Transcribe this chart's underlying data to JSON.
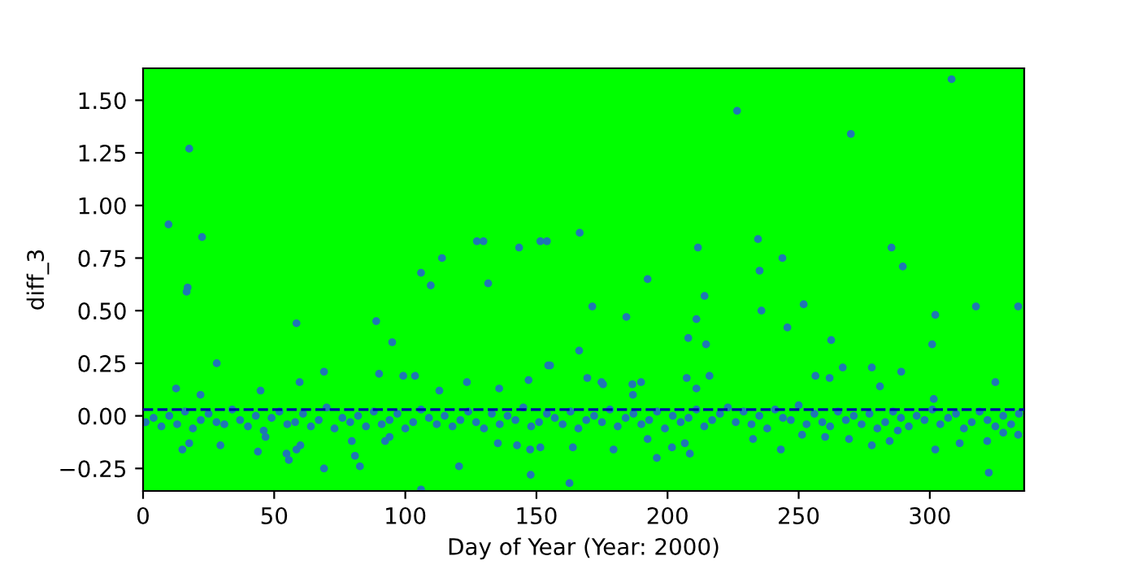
{
  "chart_data": {
    "type": "scatter",
    "xlabel": "Day of Year (Year: 2000)",
    "ylabel": "diff_3",
    "xlim": [
      0,
      336
    ],
    "ylim": [
      -0.357,
      1.652
    ],
    "xticks": [
      0,
      50,
      100,
      150,
      200,
      250,
      300
    ],
    "yticks": [
      {
        "value": -0.25,
        "label": "−0.25"
      },
      {
        "value": 0,
        "label": "0.00"
      },
      {
        "value": 0.25,
        "label": "0.25"
      },
      {
        "value": 0.5,
        "label": "0.50"
      },
      {
        "value": 0.75,
        "label": "0.75"
      },
      {
        "value": 1.0,
        "label": "1.00"
      },
      {
        "value": 1.25,
        "label": "1.25"
      },
      {
        "value": 1.5,
        "label": "1.50"
      }
    ],
    "grid": false,
    "legend": false,
    "marker": "circle",
    "ref_lines": [
      {
        "axis": "y",
        "value": 0.03,
        "color": "#0000aa",
        "line_style": "dashed"
      }
    ],
    "series": [
      {
        "color": "#1f77b4",
        "x": [
          9.7,
          17.6,
          22.5,
          17,
          16.6,
          28.1,
          12.6,
          21.9,
          58.5,
          59.7,
          69,
          44.8,
          88.9,
          95,
          90,
          99.2,
          103.7,
          106,
          109.7,
          114,
          113,
          123.5,
          127.3,
          129.8,
          131.6,
          143.4,
          151.5,
          154,
          154.5,
          135.8,
          147,
          15,
          17.6,
          29.5,
          43.8,
          46.7,
          54.7,
          55.6,
          58.5,
          60,
          69,
          79.6,
          80.8,
          82.7,
          92.3,
          94,
          106,
          120.5,
          135.3,
          142.6,
          147.6,
          147.8,
          151.5,
          166.5,
          226.5,
          269.9,
          308.3,
          155.2,
          171.3,
          166.3,
          169.4,
          174.8,
          175.4,
          184.3,
          186.6,
          189.9,
          192.4,
          186.8,
          211.6,
          214.1,
          211,
          207.9,
          214.7,
          207.3,
          211,
          216,
          234.5,
          235.1,
          243.8,
          235.8,
          245.7,
          251.9,
          262.4,
          256.4,
          261.8,
          266.8,
          277.9,
          289.1,
          285.4,
          289.7,
          281,
          300.9,
          302.1,
          317.6,
          333.7,
          325,
          301.5,
          162.6,
          163.9,
          179.4,
          192.4,
          195.9,
          201.7,
          208.5,
          206.6,
          232.6,
          243.2,
          251.3,
          260.1,
          269.2,
          277.9,
          284.7,
          287.8,
          302.1,
          311.4,
          322.5,
          321.9,
          328,
          333.7,
          1,
          4,
          7,
          10,
          13,
          16,
          19,
          22,
          25,
          28,
          31,
          34,
          37,
          40,
          43,
          46,
          49,
          52,
          55,
          58,
          61,
          64,
          67,
          70,
          73,
          76,
          79,
          82,
          85,
          88,
          91,
          94,
          97,
          100,
          103,
          106,
          109,
          112,
          115,
          118,
          121,
          124,
          127,
          130,
          133,
          136,
          139,
          142,
          145,
          148,
          151,
          154,
          157,
          160,
          163,
          166,
          169,
          172,
          175,
          178,
          181,
          184,
          187,
          190,
          193,
          196,
          199,
          202,
          205,
          208,
          211,
          214,
          217,
          220,
          223,
          226,
          229,
          232,
          235,
          238,
          241,
          244,
          247,
          250,
          253,
          256,
          259,
          262,
          265,
          268,
          271,
          274,
          277,
          280,
          283,
          286,
          289,
          292,
          295,
          298,
          301,
          304,
          307,
          310,
          313,
          316,
          319,
          322,
          325,
          328,
          331,
          334
        ],
        "values": [
          0.91,
          1.27,
          0.85,
          0.61,
          0.59,
          0.25,
          0.13,
          0.1,
          0.44,
          0.16,
          0.21,
          0.12,
          0.45,
          0.35,
          0.2,
          0.19,
          0.19,
          0.68,
          0.62,
          0.75,
          0.12,
          0.16,
          0.83,
          0.83,
          0.63,
          0.8,
          0.83,
          0.83,
          0.24,
          0.13,
          0.17,
          -0.16,
          -0.13,
          -0.14,
          -0.17,
          -0.1,
          -0.18,
          -0.21,
          -0.16,
          -0.14,
          -0.25,
          -0.12,
          -0.19,
          -0.24,
          -0.12,
          -0.1,
          -0.35,
          -0.24,
          -0.13,
          -0.14,
          -0.16,
          -0.28,
          -0.15,
          0.87,
          1.45,
          1.34,
          1.6,
          0.24,
          0.52,
          0.31,
          0.18,
          0.16,
          0.15,
          0.47,
          0.15,
          0.16,
          0.65,
          0.1,
          0.8,
          0.57,
          0.46,
          0.37,
          0.34,
          0.18,
          0.13,
          0.19,
          0.84,
          0.69,
          0.75,
          0.5,
          0.42,
          0.53,
          0.36,
          0.19,
          0.18,
          0.23,
          0.23,
          0.21,
          0.8,
          0.71,
          0.14,
          0.34,
          0.48,
          0.52,
          0.52,
          0.16,
          0.08,
          -0.32,
          -0.15,
          -0.16,
          -0.11,
          -0.2,
          -0.15,
          -0.18,
          -0.13,
          -0.11,
          -0.16,
          -0.09,
          -0.1,
          -0.11,
          -0.14,
          -0.12,
          -0.07,
          -0.16,
          -0.13,
          -0.27,
          -0.12,
          -0.08,
          -0.09,
          -0.03,
          -0.01,
          -0.05,
          0.0,
          -0.04,
          0.02,
          -0.06,
          -0.02,
          0.01,
          -0.03,
          -0.04,
          0.03,
          -0.02,
          -0.05,
          0.0,
          -0.07,
          -0.01,
          0.02,
          -0.04,
          -0.03,
          0.01,
          -0.05,
          -0.02,
          0.04,
          -0.06,
          -0.01,
          -0.03,
          0.0,
          -0.05,
          0.02,
          -0.04,
          -0.02,
          0.01,
          -0.06,
          -0.03,
          0.03,
          -0.01,
          -0.04,
          0.0,
          -0.05,
          -0.02,
          0.02,
          -0.03,
          -0.06,
          0.01,
          -0.04,
          0.0,
          -0.02,
          0.04,
          -0.05,
          -0.03,
          0.01,
          -0.01,
          -0.04,
          0.02,
          -0.06,
          -0.02,
          0.0,
          -0.03,
          0.03,
          -0.05,
          -0.01,
          0.01,
          -0.04,
          -0.02,
          0.02,
          -0.06,
          0.0,
          -0.03,
          -0.01,
          0.03,
          -0.05,
          -0.02,
          0.01,
          0.04,
          -0.03,
          0.02,
          -0.04,
          0.0,
          -0.06,
          0.03,
          -0.01,
          -0.02,
          0.05,
          -0.04,
          0.01,
          -0.03,
          -0.05,
          0.02,
          -0.02,
          0.0,
          -0.04,
          0.01,
          -0.06,
          -0.03,
          0.02,
          -0.01,
          -0.05,
          0.0,
          -0.02,
          0.03,
          -0.04,
          -0.01,
          0.01,
          -0.06,
          -0.03,
          0.02,
          -0.02,
          -0.05,
          0.0,
          -0.04,
          0.01
        ]
      }
    ]
  }
}
